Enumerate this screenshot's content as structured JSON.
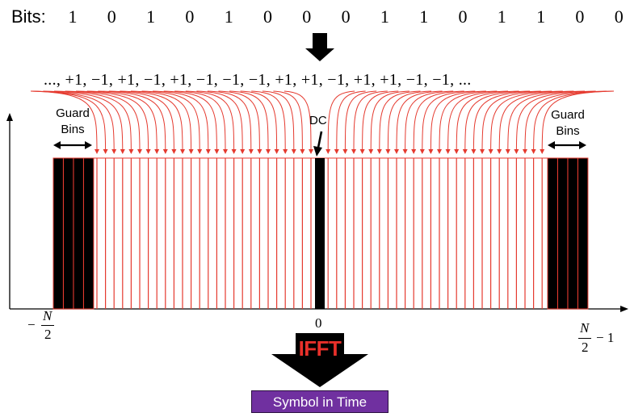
{
  "bits_label": "Bits:",
  "bits": [
    "1",
    "0",
    "1",
    "0",
    "1",
    "0",
    "0",
    "0",
    "1",
    "1",
    "0",
    "1",
    "1",
    "0",
    "0"
  ],
  "symbols_text": "..., +1, −1, +1, −1, +1, −1, −1, −1, +1, +1, −1, +1, +1, −1, −1, ...",
  "guard_left": {
    "line1": "Guard",
    "line2": "Bins"
  },
  "guard_right": {
    "line1": "Guard",
    "line2": "Bins"
  },
  "dc_label": "DC",
  "axis": {
    "left_minus": "−",
    "left_num": "N",
    "left_den": "2",
    "center": "0",
    "right_num": "N",
    "right_den": "2",
    "right_suffix": "− 1"
  },
  "ifft_label": "IFFT",
  "output_label": "Symbol in Time",
  "colors": {
    "subcarrier": "#e53a2f",
    "bin_fill": "#000000",
    "output_box": "#7030a0",
    "ifft_text": "#e8302a"
  }
}
